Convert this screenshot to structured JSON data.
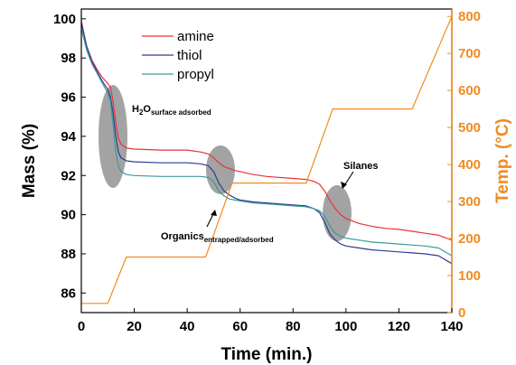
{
  "chart_data": {
    "type": "line",
    "xlabel": "Time (min.)",
    "ylabel": "Mass (%)",
    "y2label": "Temp. (°C)",
    "xlim": [
      0,
      140
    ],
    "ylim": [
      85,
      100.5
    ],
    "y2lim": [
      0,
      820
    ],
    "xticks": [
      0,
      20,
      40,
      60,
      80,
      100,
      120,
      140
    ],
    "yticks": [
      86,
      88,
      90,
      92,
      94,
      96,
      98,
      100
    ],
    "y2ticks": [
      0,
      100,
      200,
      300,
      400,
      500,
      600,
      700,
      800
    ],
    "legend_position": "top-center",
    "series": [
      {
        "name": "amine",
        "axis": "left",
        "color": "#e8333a",
        "x": [
          0,
          2,
          4,
          6,
          8,
          10,
          11,
          12,
          13,
          14,
          15,
          17,
          20,
          30,
          40,
          45,
          48,
          50,
          52,
          54,
          56,
          58,
          60,
          65,
          70,
          80,
          85,
          88,
          90,
          92,
          94,
          96,
          98,
          100,
          105,
          110,
          115,
          120,
          125,
          130,
          135,
          140
        ],
        "y": [
          99.9,
          98.6,
          97.9,
          97.4,
          97.0,
          96.7,
          96.5,
          95.8,
          94.7,
          93.9,
          93.6,
          93.4,
          93.35,
          93.3,
          93.3,
          93.2,
          93.1,
          92.9,
          92.65,
          92.45,
          92.35,
          92.25,
          92.2,
          92.05,
          91.95,
          91.85,
          91.8,
          91.7,
          91.55,
          91.2,
          90.7,
          90.3,
          90.0,
          89.8,
          89.55,
          89.4,
          89.3,
          89.25,
          89.15,
          89.05,
          88.95,
          88.7
        ]
      },
      {
        "name": "thiol",
        "axis": "left",
        "color": "#2f3a96",
        "x": [
          0,
          2,
          4,
          6,
          8,
          10,
          11,
          12,
          13,
          14,
          15,
          17,
          20,
          30,
          40,
          45,
          48,
          50,
          52,
          54,
          56,
          58,
          60,
          65,
          70,
          80,
          85,
          88,
          90,
          92,
          94,
          96,
          98,
          100,
          105,
          110,
          115,
          120,
          125,
          130,
          135,
          140
        ],
        "y": [
          99.8,
          98.6,
          97.8,
          97.3,
          96.8,
          96.4,
          96.0,
          95.2,
          94.0,
          93.2,
          92.9,
          92.75,
          92.7,
          92.65,
          92.65,
          92.6,
          92.5,
          92.2,
          91.6,
          91.2,
          91.0,
          90.85,
          90.75,
          90.65,
          90.6,
          90.5,
          90.45,
          90.3,
          90.1,
          89.6,
          89.0,
          88.7,
          88.5,
          88.4,
          88.3,
          88.2,
          88.15,
          88.1,
          88.05,
          88.0,
          87.9,
          87.5
        ]
      },
      {
        "name": "propyl",
        "axis": "left",
        "color": "#3a9a98",
        "x": [
          0,
          2,
          4,
          6,
          8,
          10,
          11,
          12,
          13,
          14,
          15,
          17,
          20,
          30,
          40,
          45,
          48,
          50,
          52,
          54,
          56,
          58,
          60,
          65,
          70,
          80,
          85,
          88,
          90,
          92,
          94,
          96,
          98,
          100,
          105,
          110,
          115,
          120,
          125,
          130,
          135,
          140
        ],
        "y": [
          99.5,
          98.4,
          97.7,
          97.2,
          96.7,
          96.2,
          95.8,
          94.6,
          93.2,
          92.5,
          92.2,
          92.05,
          92.0,
          91.95,
          91.95,
          91.95,
          91.9,
          91.7,
          91.2,
          90.95,
          90.8,
          90.75,
          90.7,
          90.6,
          90.55,
          90.45,
          90.4,
          90.3,
          90.2,
          89.9,
          89.4,
          89.05,
          88.9,
          88.8,
          88.7,
          88.6,
          88.55,
          88.5,
          88.45,
          88.4,
          88.3,
          87.9
        ]
      },
      {
        "name": "",
        "axis": "right",
        "color": "#f28a1f",
        "x": [
          0,
          10,
          17,
          47,
          57,
          85,
          95,
          125,
          140
        ],
        "y": [
          25,
          25,
          150,
          150,
          350,
          350,
          550,
          550,
          800
        ]
      }
    ],
    "annotations": [
      {
        "main": "H",
        "sub1": "2",
        "mid": "O",
        "sub2": "surface adsorbed",
        "x": 12,
        "y": 94.3
      },
      {
        "main": "Organics",
        "sub2": "entrapped/adsorbed",
        "x": 51.5,
        "y": 92.2
      },
      {
        "main": "Silanes",
        "x": 94,
        "y": 90.2
      }
    ]
  }
}
